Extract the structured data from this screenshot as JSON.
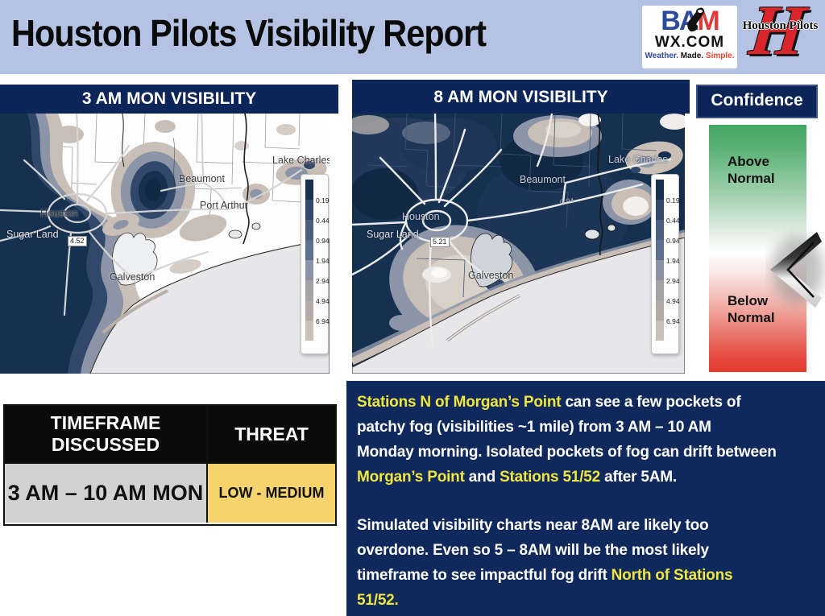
{
  "header": {
    "title": "Houston Pilots Visibility Report",
    "bamwx_logo": {
      "b": "B",
      "a": "A",
      "m": "M",
      "wx": "WX.COM",
      "tag1": "Weather.",
      "tag2": "Made.",
      "tag3": "Simple."
    },
    "pilots_logo": {
      "name": "Houston Pilots",
      "monogram": "H"
    }
  },
  "panels": {
    "map_left_title": "3 AM MON VISIBILITY",
    "map_right_title": "8 AM MON VISIBILITY",
    "confidence_title": "Confidence"
  },
  "confidence": {
    "above_label": "Above Normal",
    "below_label": "Below Normal"
  },
  "legend": {
    "values": [
      "0.19",
      "0.44",
      "0.94",
      "1.94",
      "2.94",
      "4.94",
      "6.94"
    ],
    "segment_colors": [
      "#17304e",
      "#31486a",
      "#4d5f7e",
      "#5d7090",
      "#8a92a3",
      "#a3a2a6",
      "#b4aaa5",
      "#c9bfb7"
    ]
  },
  "maps": {
    "left": {
      "labels": {
        "houston": "Houston",
        "sugar_land": "Sugar Land",
        "galveston": "Galveston",
        "beaumont": "Beaumont",
        "port_arthur": "Port Arthur",
        "lake_charles": "Lake Charles",
        "spot_value": "4.52"
      }
    },
    "right": {
      "labels": {
        "houston": "Houston",
        "sugar_land": "Sugar Land",
        "galveston": "Galveston",
        "beaumont": "Beaumont",
        "lake_charles": "Lake Charles",
        "spot_value": "5.21",
        "spot_value2": "0.94"
      }
    }
  },
  "threat_table": {
    "col1_header": "TIMEFRAME DISCUSSED",
    "col2_header": "THREAT",
    "timeframe": "3 AM – 10 AM MON",
    "threat": "LOW - MEDIUM"
  },
  "notes": {
    "lines": [
      [
        {
          "t": "Stations N of Morgan’s Point",
          "h": 1
        },
        {
          "t": " can see a few pockets of",
          "h": 0
        }
      ],
      [
        {
          "t": "patchy fog (visibilities ~1 mile) from 3 AM – 10 AM",
          "h": 0
        }
      ],
      [
        {
          "t": "Monday morning. Isolated pockets of fog can drift between",
          "h": 0
        }
      ],
      [
        {
          "t": "Morgan’s Point",
          "h": 1
        },
        {
          "t": " and ",
          "h": 0
        },
        {
          "t": "Stations 51/52",
          "h": 1
        },
        {
          "t": " after 5AM.",
          "h": 0
        }
      ],
      [],
      [
        {
          "t": "Simulated visibility charts near 8AM are likely too",
          "h": 0
        }
      ],
      [
        {
          "t": "overdone. Even so 5 – 8AM will be the most likely",
          "h": 0
        }
      ],
      [
        {
          "t": "timeframe to see impactful fog drift ",
          "h": 0
        },
        {
          "t": "North of Stations",
          "h": 1
        }
      ],
      [
        {
          "t": "51/52.",
          "h": 1
        }
      ]
    ]
  },
  "colors": {
    "navy_bar": "#0d2659",
    "notes_navy": "#10295c",
    "header_blue": "#b4c3e3",
    "highlight_yellow": "#f1e73c",
    "threat_yellow": "#f6d36d",
    "timeframe_gray": "#d2d2d2",
    "confidence_green": "#43a765",
    "confidence_red": "#e43c2f",
    "fog_dark": "#16304f",
    "fog_tan": "#c9bfb7",
    "sea_gray": "#e7e7e9"
  }
}
